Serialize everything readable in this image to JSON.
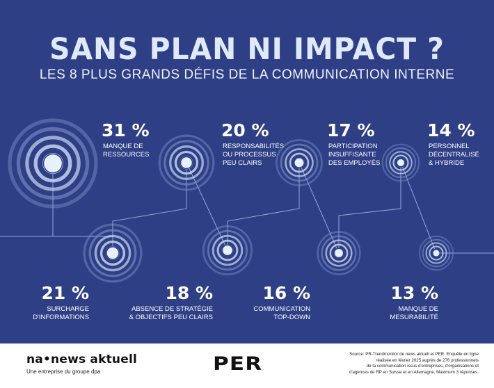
{
  "header": {
    "title": "SANS PLAN NI IMPACT ?",
    "subtitle": "LES 8 PLUS GRANDS DÉFIS DE LA COMMUNICATION INTERNE"
  },
  "colors": {
    "background": "#2e3f86",
    "ring": "#c7d6f0",
    "ring_fade": "#7f92c9",
    "core": "#e6f1fb",
    "line": "#a9bce6"
  },
  "chart_data": {
    "type": "bubble-rings",
    "title": "SANS PLAN NI IMPACT ?",
    "subtitle": "LES 8 PLUS GRANDS DÉFIS DE LA COMMUNICATION INTERNE",
    "unit": "%",
    "items": [
      {
        "rank": 1,
        "value": 31,
        "value_label": "31 %",
        "label_lines": [
          "MANQUE DE",
          "RESSOURCES"
        ]
      },
      {
        "rank": 2,
        "value": 21,
        "value_label": "21 %",
        "label_lines": [
          "SURCHARGE",
          "D'INFORMATIONS"
        ]
      },
      {
        "rank": 3,
        "value": 20,
        "value_label": "20 %",
        "label_lines": [
          "RESPONSABILITÉS",
          "OU PROCESSUS",
          "PEU CLAIRS"
        ]
      },
      {
        "rank": 4,
        "value": 18,
        "value_label": "18 %",
        "label_lines": [
          "ABSENCE DE STRATÉGIE",
          "& OBJECTIFS PEU CLAIRS"
        ]
      },
      {
        "rank": 5,
        "value": 17,
        "value_label": "17 %",
        "label_lines": [
          "PARTICIPATION",
          "INSUFFISANTE",
          "DES EMPLOYÉS"
        ]
      },
      {
        "rank": 6,
        "value": 16,
        "value_label": "16 %",
        "label_lines": [
          "COMMUNICATION",
          "TOP-DOWN"
        ]
      },
      {
        "rank": 7,
        "value": 14,
        "value_label": "14 %",
        "label_lines": [
          "PERSONNEL",
          "DÉCENTRALISÉ",
          "& HYBRIDE"
        ]
      },
      {
        "rank": 8,
        "value": 13,
        "value_label": "13 %",
        "label_lines": [
          "MANQUE DE",
          "MESURABILITÉ"
        ]
      }
    ]
  },
  "footer": {
    "brand": "na•news aktuell",
    "brand_sub": "Une entreprise du groupe dpa",
    "partner_logo": "PER",
    "source_lines": [
      "Source: PR-Trendmonitor de news aktuell et PER. Enquête en ligne",
      "réalisée en février 2025 auprès de 276 professionnels",
      "de la communication issus d'entreprises, d'organisations et",
      "d'agences de RP en Suisse et en Allemagne. Maximum 3 réponses."
    ]
  }
}
